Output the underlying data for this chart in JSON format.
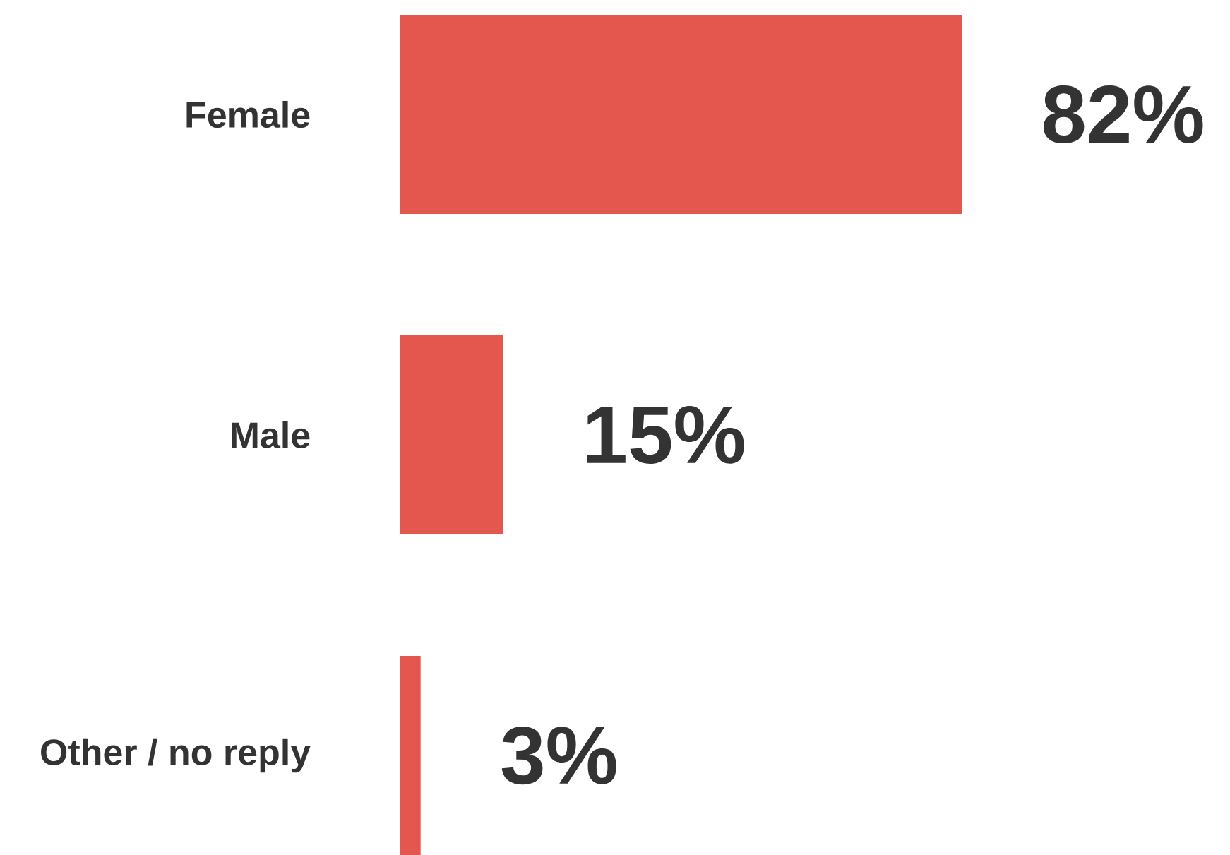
{
  "chart_data": {
    "type": "bar",
    "orientation": "horizontal",
    "categories": [
      "Female",
      "Male",
      "Other / no reply"
    ],
    "values": [
      82,
      15,
      3
    ],
    "color": "#e4574f",
    "value_labels": [
      "82%",
      "15%",
      "3%"
    ],
    "tick_labels": "y"
  }
}
